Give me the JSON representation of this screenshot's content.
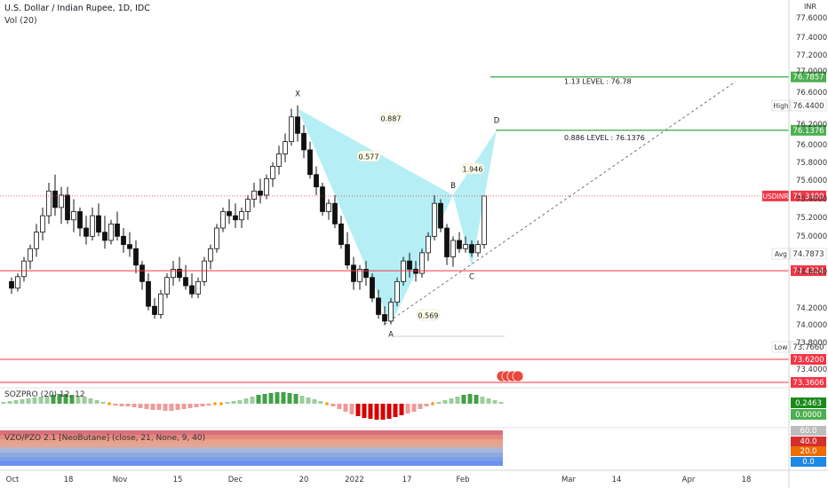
{
  "header": {
    "title": "U.S. Dollar / Indian Rupee, 1D, IDC",
    "volume": "Vol (20)"
  },
  "colors": {
    "up": "#2b2b2b",
    "down": "#111111",
    "pattern": "#a8ecf3",
    "green_line": "#4caf50",
    "red_line": "#f23645",
    "green_badge": "#4caf50",
    "red_badge": "#f23645"
  },
  "price_axis": {
    "unit": "INR",
    "ticks": [
      "77.6000",
      "77.4000",
      "77.2000",
      "77.0000",
      "76.6000",
      "76.4400",
      "76.2000",
      "76.0000",
      "75.8000",
      "75.6000",
      "75.4000",
      "75.2000",
      "75.0000",
      "74.7873",
      "74.6000",
      "74.4324",
      "74.2000",
      "74.0000",
      "73.8000",
      "73.7660",
      "73.6200",
      "73.4000",
      "73.3606"
    ]
  },
  "price_badges": {
    "level_113": "76.7857",
    "level_886": "76.1376",
    "usdinr_label": "USDINR",
    "usdinr": "75.3400",
    "support": "74.4324",
    "support2": "73.6200",
    "support3": "73.3606",
    "high_label": "High",
    "high": "76.4400",
    "avg_label": "Avg",
    "avg": "74.7873",
    "low_label": "Low",
    "low": "73.7660"
  },
  "time_axis": [
    "Oct",
    "18",
    "Nov",
    "15",
    "Dec",
    "20",
    "2022",
    "17",
    "Feb",
    "Mar",
    "14",
    "Apr",
    "18"
  ],
  "pattern": {
    "points": [
      {
        "label": "X",
        "price": 76.4
      },
      {
        "label": "A",
        "price": 73.78
      },
      {
        "label": "B",
        "price": 75.35
      },
      {
        "label": "C",
        "price": 74.48
      },
      {
        "label": "D",
        "price": 76.14
      }
    ],
    "ratios": [
      "0.887",
      "0.577",
      "1.946",
      "0.569"
    ],
    "level_113_text": "1.13 LEVEL : 76.78",
    "level_886_text": "0.886 LEVEL : 76.1376"
  },
  "indicators": {
    "soz_label": "SOZPRO (20) 12, 12",
    "soz_value1": "0.2463",
    "soz_value2": "0.0000",
    "vzo_label": "VZO/PZO 2.1 [NeoButane] (close, 21, None, 9, 40)",
    "vzo_ticks": [
      "60.0",
      "40.0",
      "20.0",
      "0.0"
    ]
  },
  "chart_data": {
    "type": "candlestick",
    "symbol": "USDINR",
    "title": "U.S. Dollar / Indian Rupee, 1D, IDC",
    "ylim": [
      73.28,
      77.72
    ],
    "candles": [
      [
        74.3,
        74.35,
        74.15,
        74.22
      ],
      [
        74.22,
        74.4,
        74.18,
        74.36
      ],
      [
        74.36,
        74.6,
        74.3,
        74.55
      ],
      [
        74.55,
        74.75,
        74.45,
        74.7
      ],
      [
        74.7,
        75.0,
        74.6,
        74.9
      ],
      [
        74.9,
        75.2,
        74.8,
        75.1
      ],
      [
        75.1,
        75.5,
        75.0,
        75.4
      ],
      [
        75.4,
        75.6,
        75.1,
        75.2
      ],
      [
        75.2,
        75.45,
        75.0,
        75.35
      ],
      [
        75.35,
        75.45,
        75.0,
        75.05
      ],
      [
        75.05,
        75.3,
        74.9,
        75.15
      ],
      [
        75.15,
        75.2,
        74.85,
        74.95
      ],
      [
        74.95,
        75.1,
        74.75,
        74.85
      ],
      [
        74.85,
        75.2,
        74.8,
        75.1
      ],
      [
        75.1,
        75.25,
        74.85,
        74.9
      ],
      [
        74.9,
        75.1,
        74.7,
        74.8
      ],
      [
        74.8,
        75.05,
        74.75,
        75.0
      ],
      [
        75.0,
        75.15,
        74.8,
        74.85
      ],
      [
        74.85,
        74.95,
        74.65,
        74.75
      ],
      [
        74.75,
        74.9,
        74.6,
        74.7
      ],
      [
        74.7,
        74.8,
        74.4,
        74.5
      ],
      [
        74.5,
        74.55,
        74.2,
        74.3
      ],
      [
        74.3,
        74.4,
        73.95,
        74.0
      ],
      [
        74.0,
        74.1,
        73.85,
        73.9
      ],
      [
        73.9,
        74.2,
        73.85,
        74.15
      ],
      [
        74.15,
        74.4,
        74.1,
        74.35
      ],
      [
        74.35,
        74.55,
        74.25,
        74.45
      ],
      [
        74.45,
        74.6,
        74.3,
        74.35
      ],
      [
        74.35,
        74.5,
        74.2,
        74.25
      ],
      [
        74.25,
        74.4,
        74.1,
        74.15
      ],
      [
        74.15,
        74.35,
        74.1,
        74.3
      ],
      [
        74.3,
        74.6,
        74.25,
        74.55
      ],
      [
        74.55,
        74.75,
        74.45,
        74.7
      ],
      [
        74.7,
        75.0,
        74.65,
        74.95
      ],
      [
        74.95,
        75.2,
        74.9,
        75.15
      ],
      [
        75.15,
        75.3,
        75.0,
        75.1
      ],
      [
        75.1,
        75.25,
        74.95,
        75.05
      ],
      [
        75.05,
        75.2,
        74.95,
        75.15
      ],
      [
        75.15,
        75.35,
        75.05,
        75.3
      ],
      [
        75.3,
        75.5,
        75.2,
        75.4
      ],
      [
        75.4,
        75.55,
        75.25,
        75.35
      ],
      [
        75.35,
        75.6,
        75.3,
        75.55
      ],
      [
        75.55,
        75.75,
        75.45,
        75.7
      ],
      [
        75.7,
        75.95,
        75.6,
        75.85
      ],
      [
        75.85,
        76.1,
        75.75,
        76.0
      ],
      [
        76.0,
        76.4,
        75.95,
        76.3
      ],
      [
        76.3,
        76.44,
        76.0,
        76.1
      ],
      [
        76.1,
        76.2,
        75.8,
        75.9
      ],
      [
        75.9,
        76.0,
        75.55,
        75.6
      ],
      [
        75.6,
        75.7,
        75.35,
        75.45
      ],
      [
        75.45,
        75.5,
        75.1,
        75.15
      ],
      [
        75.15,
        75.3,
        75.05,
        75.25
      ],
      [
        75.25,
        75.35,
        74.95,
        75.0
      ],
      [
        75.0,
        75.1,
        74.7,
        74.75
      ],
      [
        74.75,
        74.9,
        74.45,
        74.5
      ],
      [
        74.5,
        74.6,
        74.2,
        74.3
      ],
      [
        74.3,
        74.5,
        74.2,
        74.45
      ],
      [
        74.45,
        74.55,
        74.25,
        74.35
      ],
      [
        74.35,
        74.4,
        74.05,
        74.1
      ],
      [
        74.1,
        74.2,
        73.85,
        73.9
      ],
      [
        73.9,
        74.0,
        73.77,
        73.82
      ],
      [
        73.82,
        74.1,
        73.78,
        74.05
      ],
      [
        74.05,
        74.35,
        74.0,
        74.3
      ],
      [
        74.3,
        74.6,
        74.25,
        74.55
      ],
      [
        74.55,
        74.65,
        74.35,
        74.45
      ],
      [
        74.45,
        74.55,
        74.3,
        74.4
      ],
      [
        74.4,
        74.7,
        74.35,
        74.65
      ],
      [
        74.65,
        74.9,
        74.55,
        74.85
      ],
      [
        74.85,
        75.35,
        74.8,
        75.25
      ],
      [
        75.25,
        75.3,
        74.9,
        74.95
      ],
      [
        74.95,
        75.0,
        74.5,
        74.6
      ],
      [
        74.6,
        74.85,
        74.48,
        74.8
      ],
      [
        74.8,
        74.9,
        74.65,
        74.7
      ],
      [
        74.7,
        74.85,
        74.65,
        74.75
      ],
      [
        74.75,
        74.8,
        74.6,
        74.65
      ],
      [
        74.65,
        74.8,
        74.6,
        74.75
      ],
      [
        74.75,
        75.34,
        74.7,
        75.34
      ]
    ]
  }
}
